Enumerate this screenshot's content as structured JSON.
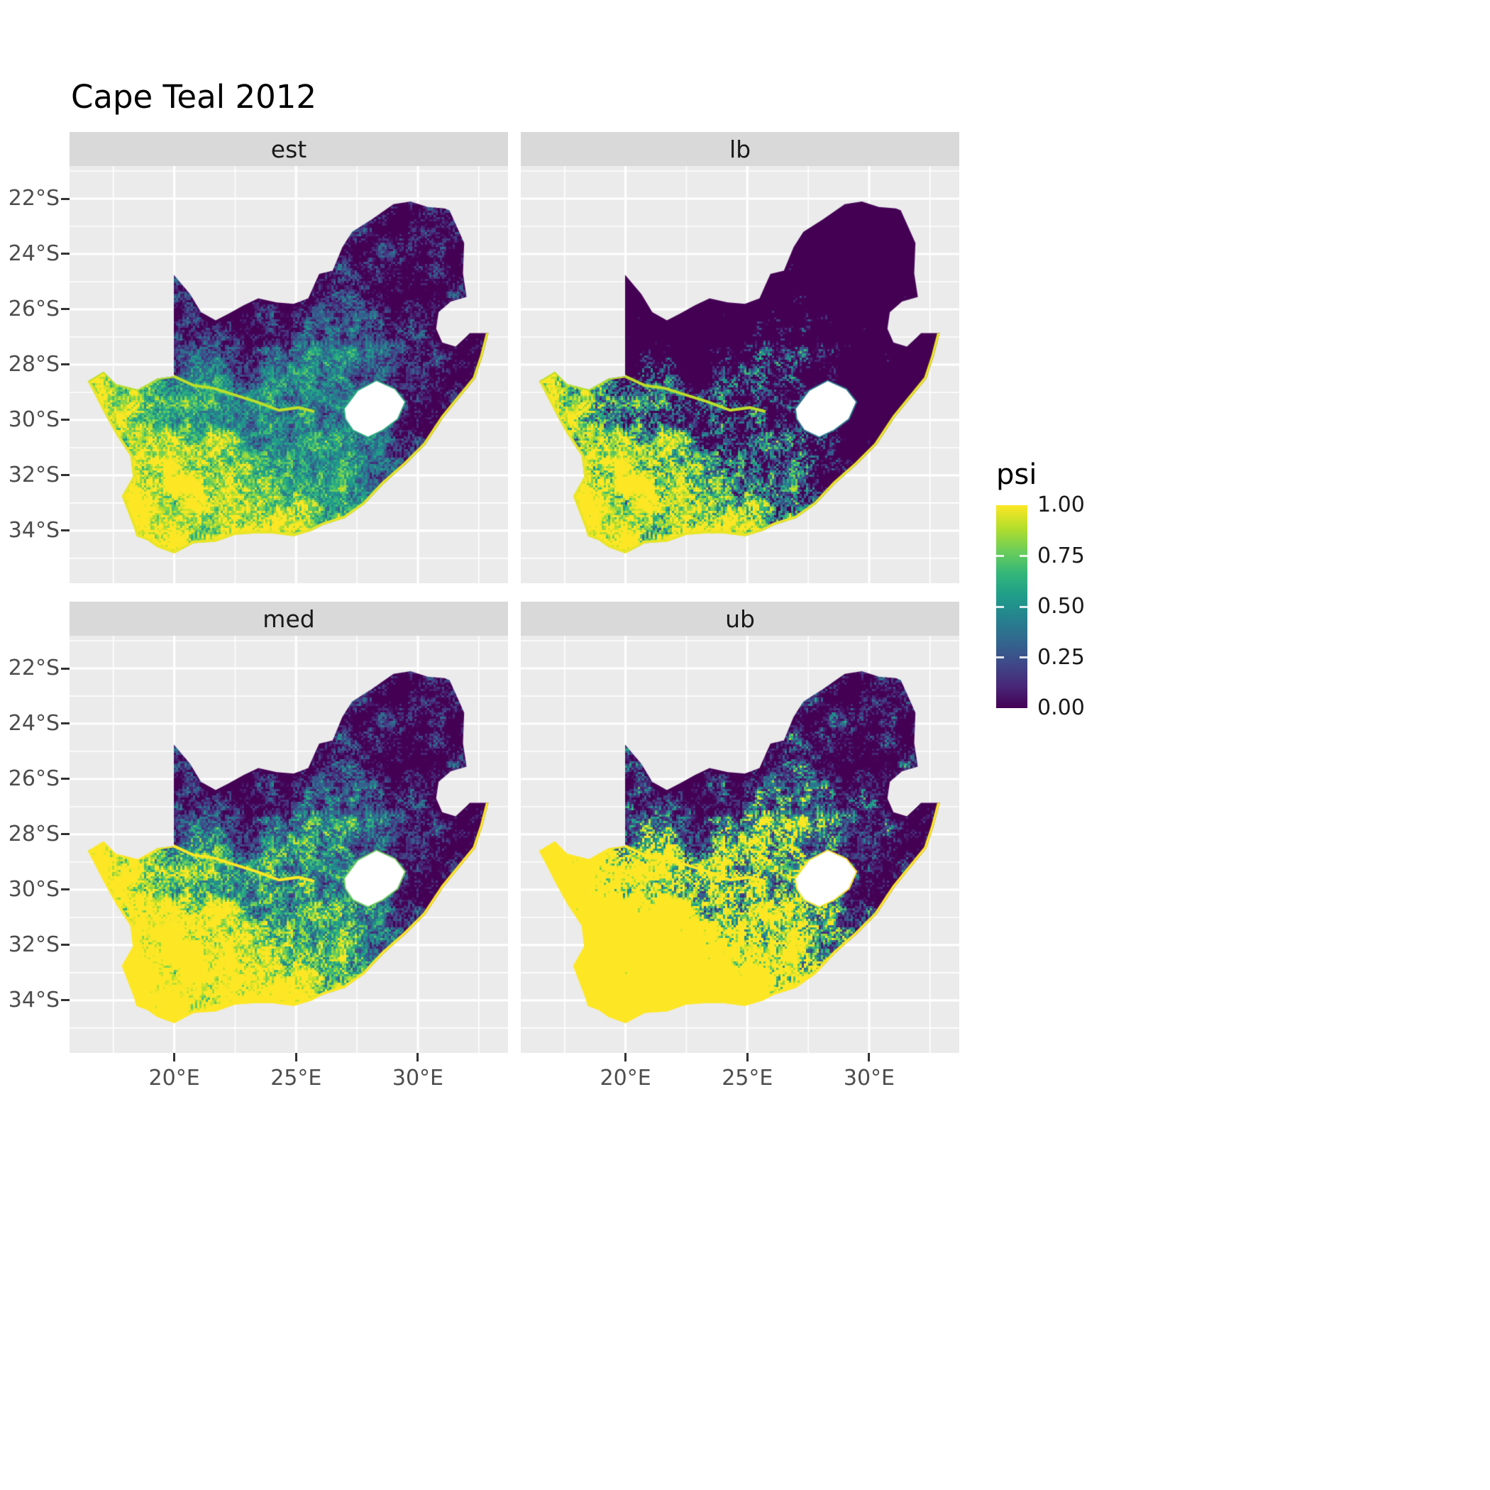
{
  "title": "Cape Teal 2012",
  "facets": [
    {
      "label": "est"
    },
    {
      "label": "lb"
    },
    {
      "label": "med"
    },
    {
      "label": "ub"
    }
  ],
  "axes": {
    "y_labels": [
      "22°S",
      "24°S",
      "26°S",
      "28°S",
      "30°S",
      "32°S",
      "34°S"
    ],
    "y_values": [
      22,
      24,
      26,
      28,
      30,
      32,
      34
    ],
    "x_labels": [
      "20°E",
      "25°E",
      "30°E"
    ],
    "x_values": [
      20,
      25,
      30
    ]
  },
  "legend": {
    "title": "psi",
    "tick_labels": [
      "1.00",
      "0.75",
      "0.50",
      "0.25",
      "0.00"
    ],
    "tick_values": [
      1.0,
      0.75,
      0.5,
      0.25,
      0.0
    ]
  },
  "colors": {
    "panel_bg": "#ebebeb",
    "strip_bg": "#d9d9d9",
    "grid": "#ffffff",
    "axis_text": "#4d4d4d",
    "tick_mark": "#333333",
    "title_text": "#000000",
    "na_hole": "#ffffff",
    "viridis": [
      "#440154",
      "#482878",
      "#3e4989",
      "#31688e",
      "#26828e",
      "#1f9e89",
      "#35b779",
      "#6ece58",
      "#b5de2b",
      "#fde725"
    ]
  },
  "chart_data": {
    "type": "heatmap",
    "title": "Cape Teal 2012",
    "facets": [
      "est",
      "lb",
      "med",
      "ub"
    ],
    "value_name": "psi",
    "value_range": [
      0,
      1
    ],
    "palette": "viridis",
    "legend_position": "right",
    "x_axis": {
      "tick_labels": [
        "20°E",
        "25°E",
        "30°E"
      ],
      "tick_values": [
        20,
        25,
        30
      ],
      "range_lon_east": [
        15.7,
        33.7
      ]
    },
    "y_axis": {
      "tick_labels": [
        "22°S",
        "24°S",
        "26°S",
        "28°S",
        "30°S",
        "32°S",
        "34°S"
      ],
      "tick_values": [
        22,
        24,
        26,
        28,
        30,
        32,
        34
      ],
      "range_lat_south": [
        20.82,
        35.9
      ]
    },
    "map": {
      "coast_from_index": 37,
      "outline": [
        [
          16.45,
          28.6
        ],
        [
          17.1,
          28.25
        ],
        [
          17.6,
          28.7
        ],
        [
          18.5,
          28.9
        ],
        [
          19.3,
          28.5
        ],
        [
          19.98,
          28.42
        ],
        [
          19.98,
          24.75
        ],
        [
          20.65,
          25.45
        ],
        [
          21.1,
          26.1
        ],
        [
          21.7,
          26.4
        ],
        [
          22.25,
          26.15
        ],
        [
          22.85,
          25.85
        ],
        [
          23.45,
          25.6
        ],
        [
          24.2,
          25.75
        ],
        [
          24.9,
          25.8
        ],
        [
          25.5,
          25.6
        ],
        [
          25.75,
          25.1
        ],
        [
          25.95,
          24.72
        ],
        [
          26.5,
          24.6
        ],
        [
          26.9,
          23.75
        ],
        [
          27.3,
          23.2
        ],
        [
          28.1,
          22.75
        ],
        [
          29.0,
          22.2
        ],
        [
          29.7,
          22.1
        ],
        [
          30.4,
          22.3
        ],
        [
          31.1,
          22.35
        ],
        [
          31.3,
          22.42
        ],
        [
          31.9,
          23.6
        ],
        [
          31.85,
          24.7
        ],
        [
          32.0,
          25.55
        ],
        [
          31.35,
          25.72
        ],
        [
          30.85,
          26.1
        ],
        [
          30.75,
          26.7
        ],
        [
          31.0,
          27.2
        ],
        [
          31.55,
          27.35
        ],
        [
          31.97,
          27.0
        ],
        [
          32.13,
          26.86
        ],
        [
          32.9,
          26.86
        ],
        [
          32.65,
          27.7
        ],
        [
          32.35,
          28.5
        ],
        [
          31.7,
          29.2
        ],
        [
          31.05,
          29.9
        ],
        [
          30.3,
          30.9
        ],
        [
          29.5,
          31.6
        ],
        [
          28.6,
          32.3
        ],
        [
          27.8,
          33.05
        ],
        [
          27.0,
          33.55
        ],
        [
          26.1,
          33.8
        ],
        [
          25.65,
          34.0
        ],
        [
          24.9,
          34.2
        ],
        [
          24.0,
          34.1
        ],
        [
          23.3,
          34.1
        ],
        [
          22.5,
          34.15
        ],
        [
          21.7,
          34.4
        ],
        [
          20.8,
          34.45
        ],
        [
          20.0,
          34.82
        ],
        [
          19.3,
          34.6
        ],
        [
          18.9,
          34.35
        ],
        [
          18.45,
          34.2
        ],
        [
          18.35,
          33.9
        ],
        [
          18.0,
          33.1
        ],
        [
          17.85,
          32.75
        ],
        [
          18.3,
          32.05
        ],
        [
          18.2,
          31.3
        ],
        [
          17.6,
          30.5
        ],
        [
          17.1,
          29.7
        ],
        [
          16.75,
          29.1
        ]
      ],
      "lesotho_hole": [
        [
          27.0,
          29.6
        ],
        [
          27.55,
          28.95
        ],
        [
          28.3,
          28.6
        ],
        [
          29.05,
          28.9
        ],
        [
          29.45,
          29.35
        ],
        [
          29.15,
          29.95
        ],
        [
          28.55,
          30.35
        ],
        [
          27.95,
          30.6
        ],
        [
          27.35,
          30.35
        ],
        [
          27.05,
          29.95
        ]
      ],
      "orange_river": [
        [
          16.45,
          28.6
        ],
        [
          17.1,
          28.25
        ],
        [
          17.6,
          28.7
        ],
        [
          18.5,
          28.9
        ],
        [
          19.3,
          28.5
        ],
        [
          19.98,
          28.42
        ],
        [
          20.8,
          28.75
        ],
        [
          21.6,
          28.85
        ],
        [
          22.5,
          29.1
        ],
        [
          23.4,
          29.35
        ],
        [
          24.3,
          29.65
        ],
        [
          25.1,
          29.55
        ],
        [
          25.75,
          29.7
        ]
      ]
    }
  }
}
